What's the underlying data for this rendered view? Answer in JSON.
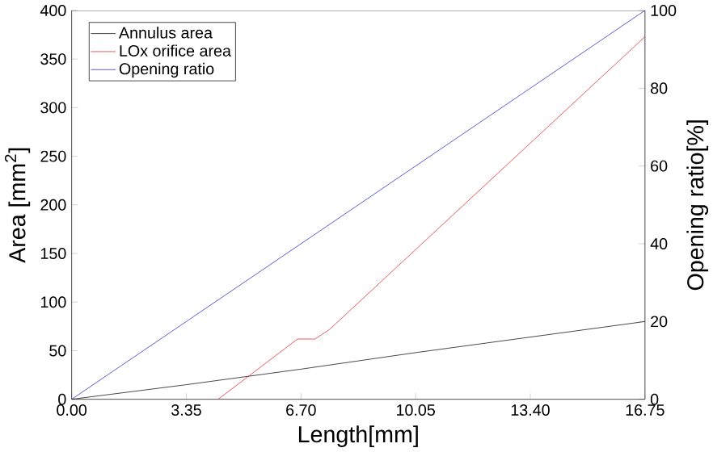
{
  "chart_data": {
    "type": "line",
    "xlabel": "Length[mm]",
    "ylabel": "Area [mm$^{2}$]",
    "y2label": "Opening ratio[%]",
    "xlim": [
      0,
      16.75
    ],
    "xticks": [
      {
        "value": 0,
        "label": "0.00"
      },
      {
        "value": 3.35,
        "label": "3.35"
      },
      {
        "value": 6.7,
        "label": "6.70"
      },
      {
        "value": 10.05,
        "label": "10.05"
      },
      {
        "value": 13.4,
        "label": "13.40"
      },
      {
        "value": 16.75,
        "label": "16.75"
      }
    ],
    "ylim": [
      0,
      400
    ],
    "yticks": [
      0,
      50,
      100,
      150,
      200,
      250,
      300,
      350,
      400
    ],
    "y2lim": [
      0,
      100
    ],
    "y2ticks": [
      0,
      20,
      40,
      60,
      80,
      100
    ],
    "legend": "top left",
    "grid": false,
    "marker": "none",
    "line_style": "solid",
    "series": [
      {
        "name": "Annulus area",
        "color": "#000000",
        "x": [
          0,
          3.35,
          6.7,
          10.05,
          13.4,
          16.75
        ],
        "values": [
          0,
          15,
          31,
          48,
          64,
          80
        ]
      },
      {
        "name": "LOx orifice area",
        "color": "#e41a1c",
        "x": [
          4.28,
          6.6,
          7.11,
          7.54,
          16.75
        ],
        "values": [
          0,
          62,
          62,
          72,
          373
        ]
      },
      {
        "name": "Opening ratio",
        "color": "#1f1fc8",
        "axis": "y2",
        "x": [
          0,
          16.75
        ],
        "values": [
          0,
          100
        ]
      }
    ]
  }
}
